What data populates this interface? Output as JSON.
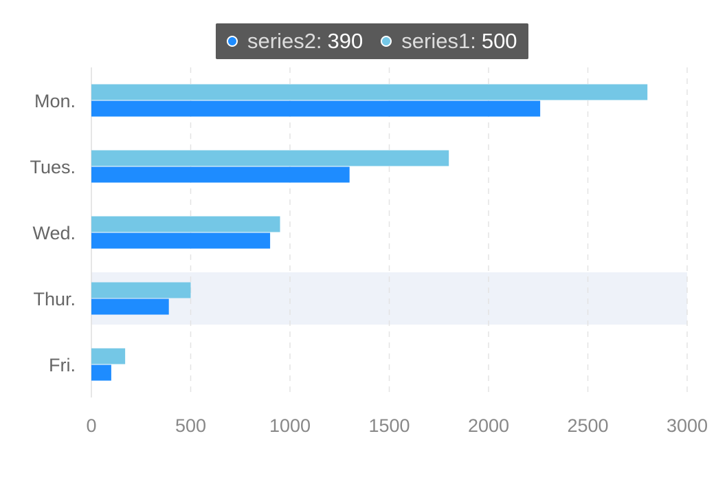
{
  "chart_data": {
    "type": "bar",
    "orientation": "horizontal",
    "categories": [
      "Mon.",
      "Tues.",
      "Wed.",
      "Thur.",
      "Fri."
    ],
    "series": [
      {
        "name": "series1",
        "values": [
          2800,
          1800,
          950,
          500,
          170
        ],
        "color": "#74C7E6"
      },
      {
        "name": "series2",
        "values": [
          2260,
          1300,
          900,
          390,
          100
        ],
        "color": "#1E8CFF"
      }
    ],
    "xlim": [
      0,
      3000
    ],
    "xticks": [
      0,
      500,
      1000,
      1500,
      2000,
      2500,
      3000
    ],
    "grid": true,
    "highlighted_category": "Thur."
  },
  "tooltip": {
    "items": [
      {
        "name": "series2:",
        "value": "390",
        "color": "#1E8CFF"
      },
      {
        "name": "series1:",
        "value": "500",
        "color": "#74C7E6"
      }
    ]
  },
  "colors": {
    "grid": "#e3e3e3",
    "axis": "#dddddd",
    "highlight": "#eef2f9"
  }
}
